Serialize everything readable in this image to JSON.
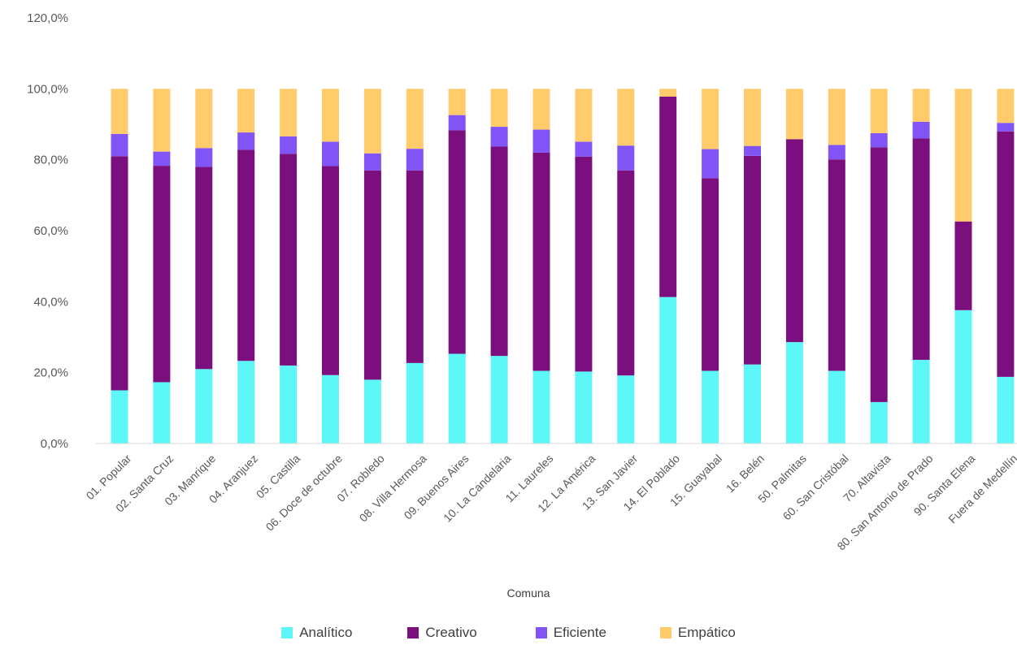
{
  "chart_data": {
    "type": "bar",
    "stacked": true,
    "xlabel": "Comuna",
    "ylabel": "",
    "ylim": [
      0,
      120
    ],
    "yticks": [
      "0,0%",
      "20,0%",
      "40,0%",
      "60,0%",
      "80,0%",
      "100,0%",
      "120,0%"
    ],
    "grid": false,
    "legend_position": "bottom",
    "categories": [
      "01. Popular",
      "02. Santa Cruz",
      "03. Manrique",
      "04. Aranjuez",
      "05. Castilla",
      "06. Doce de octubre",
      "07. Robledo",
      "08. Villa Hermosa",
      "09. Buenos Aires",
      "10. La Candelaria",
      "11. Laureles",
      "12. La América",
      "13. San Javier",
      "14. El Poblado",
      "15. Guayabal",
      "16. Belén",
      "50. Palmitas",
      "60. San Cristóbal",
      "70. Altavista",
      "80. San Antonio de Prado",
      "90. Santa Elena",
      "Fuera de Medellín"
    ],
    "series": [
      {
        "name": "Analítico",
        "color": "#5ef7f7",
        "values": [
          15,
          17.3,
          21,
          23.3,
          22,
          19.3,
          18,
          22.7,
          25.3,
          24.7,
          20.5,
          20.3,
          19.2,
          41.3,
          20.5,
          22.3,
          28.6,
          20.5,
          11.7,
          23.6,
          37.6,
          18.8
        ]
      },
      {
        "name": "Creativo",
        "color": "#7b0f7e",
        "values": [
          66,
          61,
          57,
          59.5,
          59.7,
          58.9,
          59,
          54.3,
          63,
          59,
          61.5,
          60.6,
          57.8,
          56.5,
          54.3,
          58.8,
          57.2,
          59.6,
          71.8,
          62.4,
          25,
          69.2
        ]
      },
      {
        "name": "Eficiente",
        "color": "#8155f5",
        "values": [
          6.3,
          4,
          5.3,
          4.9,
          4.9,
          6.9,
          4.8,
          6.1,
          4.3,
          5.6,
          6.5,
          4.2,
          7,
          0,
          8.2,
          2.8,
          0,
          4.1,
          4,
          4.7,
          0,
          2.4
        ]
      },
      {
        "name": "Empático",
        "color": "#ffcb6b",
        "values": [
          12.7,
          17.7,
          16.7,
          12.3,
          13.4,
          14.9,
          18.2,
          16.9,
          7.4,
          10.7,
          11.5,
          14.9,
          16,
          2.2,
          17,
          16.1,
          14.2,
          15.8,
          12.5,
          9.3,
          37.4,
          9.6
        ]
      }
    ]
  }
}
